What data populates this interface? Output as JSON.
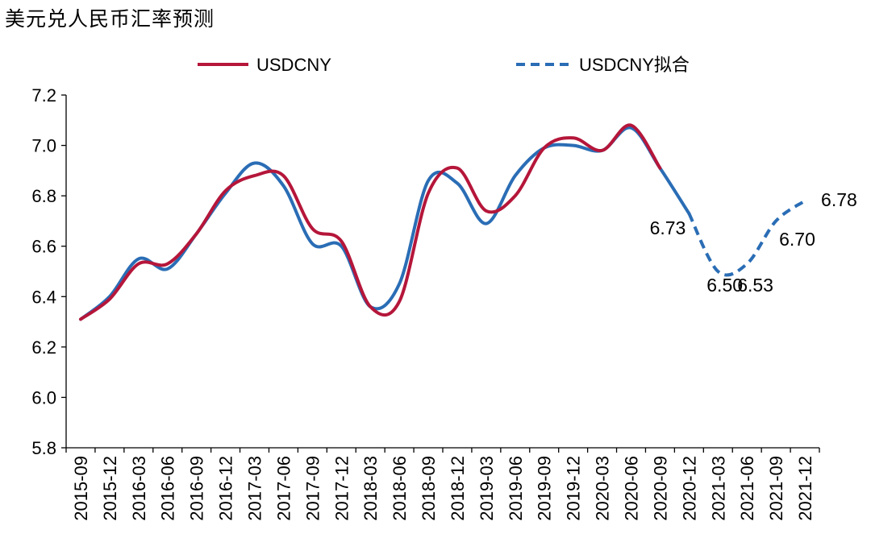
{
  "chart_data": {
    "type": "line",
    "title": "美元兑人民币汇率预测",
    "ylim": [
      5.8,
      7.2
    ],
    "yticks": [
      "5.8",
      "6.0",
      "6.2",
      "6.4",
      "6.6",
      "6.8",
      "7.0",
      "7.2"
    ],
    "x_ticks": [
      "2015-09",
      "2015-12",
      "2016-03",
      "2016-06",
      "2016-09",
      "2016-12",
      "2017-03",
      "2017-06",
      "2017-09",
      "2017-12",
      "2018-03",
      "2018-06",
      "2018-09",
      "2018-12",
      "2019-03",
      "2019-06",
      "2019-09",
      "2019-12",
      "2020-03",
      "2020-06",
      "2020-09",
      "2020-12",
      "2021-03",
      "2021-06",
      "2021-09",
      "2021-12"
    ],
    "legend_position": "top",
    "grid": false,
    "series": [
      {
        "name": "USDCNY",
        "color": "#b5163a",
        "style": "solid",
        "x": [
          "2015-09",
          "2015-12",
          "2016-03",
          "2016-06",
          "2016-09",
          "2016-12",
          "2017-03",
          "2017-06",
          "2017-09",
          "2017-12",
          "2018-03",
          "2018-06",
          "2018-09",
          "2018-12",
          "2019-03",
          "2019-06",
          "2019-09",
          "2019-12",
          "2020-03",
          "2020-06",
          "2020-09"
        ],
        "values": [
          6.31,
          6.39,
          6.53,
          6.53,
          6.65,
          6.82,
          6.88,
          6.88,
          6.67,
          6.62,
          6.36,
          6.38,
          6.81,
          6.91,
          6.74,
          6.8,
          6.99,
          7.03,
          6.98,
          7.08,
          6.91
        ]
      },
      {
        "name": "USDCNY拟合",
        "color": "#2a6db5",
        "style": "solid-then-dashed",
        "dash_from": "2020-12",
        "x": [
          "2015-09",
          "2015-12",
          "2016-03",
          "2016-06",
          "2016-09",
          "2016-12",
          "2017-03",
          "2017-06",
          "2017-09",
          "2017-12",
          "2018-03",
          "2018-06",
          "2018-09",
          "2018-12",
          "2019-03",
          "2019-06",
          "2019-09",
          "2019-12",
          "2020-03",
          "2020-06",
          "2020-09",
          "2020-12",
          "2021-03",
          "2021-06",
          "2021-09",
          "2021-12"
        ],
        "values": [
          6.31,
          6.4,
          6.55,
          6.51,
          6.65,
          6.81,
          6.93,
          6.84,
          6.61,
          6.6,
          6.36,
          6.45,
          6.86,
          6.85,
          6.69,
          6.88,
          6.99,
          7.0,
          6.98,
          7.07,
          6.91,
          6.73,
          6.5,
          6.53,
          6.7,
          6.78
        ]
      }
    ],
    "annotations": [
      {
        "text": "6.73",
        "x": "2020-12"
      },
      {
        "text": "6.50",
        "x": "2021-03"
      },
      {
        "text": "6.53",
        "x": "2021-06"
      },
      {
        "text": "6.70",
        "x": "2021-09"
      },
      {
        "text": "6.78",
        "x": "2021-12"
      }
    ]
  }
}
